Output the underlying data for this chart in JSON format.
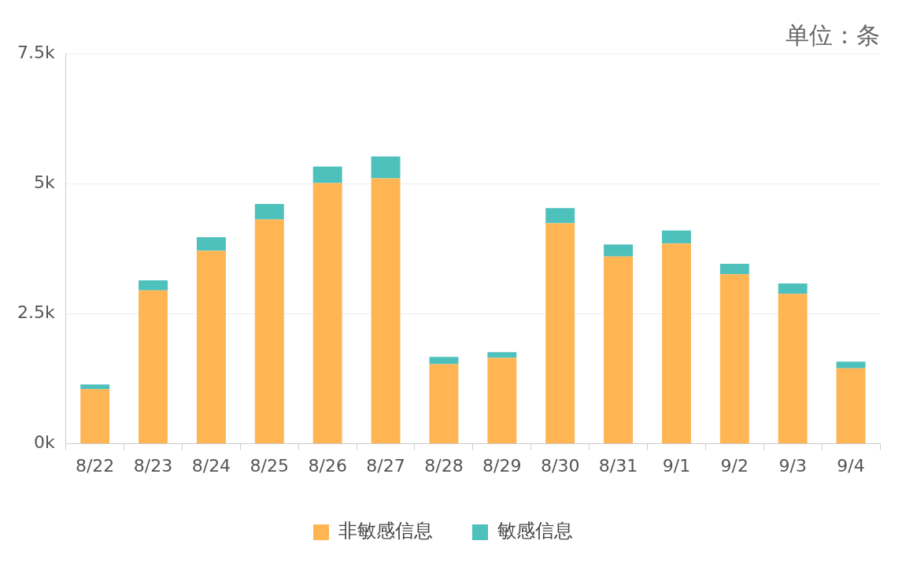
{
  "chart_data": {
    "type": "bar",
    "stacked": true,
    "annotations": [
      "单位：条"
    ],
    "categories": [
      "8/22",
      "8/23",
      "8/24",
      "8/25",
      "8/26",
      "8/27",
      "8/28",
      "8/29",
      "8/30",
      "8/31",
      "9/1",
      "9/2",
      "9/3",
      "9/4"
    ],
    "series": [
      {
        "name": "非敏感信息",
        "color": "#ffb554",
        "values": [
          1050,
          2950,
          3710,
          4310,
          5010,
          5100,
          1530,
          1650,
          4240,
          3600,
          3850,
          3260,
          2880,
          1450
        ]
      },
      {
        "name": "敏感信息",
        "color": "#4fc1bd",
        "values": [
          90,
          190,
          260,
          300,
          320,
          420,
          140,
          110,
          290,
          230,
          250,
          200,
          200,
          130
        ]
      }
    ],
    "ylim": [
      0,
      7500
    ],
    "yticks": [
      {
        "value": 0,
        "label": "0k"
      },
      {
        "value": 2500,
        "label": "2.5k"
      },
      {
        "value": 5000,
        "label": "5k"
      },
      {
        "value": 7500,
        "label": "7.5k"
      }
    ],
    "grid": "y",
    "legend": "bottom"
  }
}
